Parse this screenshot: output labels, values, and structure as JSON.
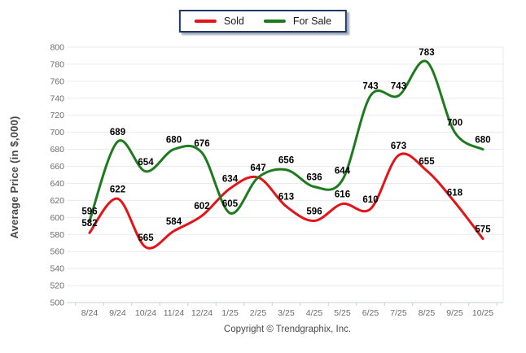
{
  "page": {
    "footer": "Copyright © Trendgraphix, Inc."
  },
  "legend": {
    "border_color": "#1f3864"
  },
  "chart_data": {
    "type": "line",
    "title": "",
    "xlabel": "",
    "ylabel": "Average Price (in $,000)",
    "ylim": [
      500,
      800
    ],
    "ytick_step": 20,
    "grid": "horizontal",
    "legend_position": "top-center",
    "smooth": true,
    "categories": [
      "8/24",
      "9/24",
      "10/24",
      "11/24",
      "12/24",
      "1/25",
      "2/25",
      "3/25",
      "4/25",
      "5/25",
      "6/25",
      "7/25",
      "8/25",
      "9/25",
      "10/25"
    ],
    "series": [
      {
        "name": "Sold",
        "color": "#e41317",
        "values": [
          582,
          622,
          565,
          584,
          602,
          634,
          647,
          613,
          596,
          616,
          610,
          673,
          655,
          618,
          575
        ],
        "labels": [
          "582",
          "622",
          "565",
          "584",
          "602",
          "634",
          "647",
          "613",
          "596",
          "616",
          "610",
          "673",
          "655",
          "618",
          "575"
        ]
      },
      {
        "name": "For Sale",
        "color": "#1d7a1d",
        "values": [
          596,
          689,
          654,
          680,
          676,
          605,
          647,
          656,
          636,
          644,
          743,
          743,
          783,
          700,
          680
        ],
        "labels": [
          "596",
          "689",
          "654",
          "680",
          "676",
          "605",
          "",
          "656",
          "636",
          "644",
          "743",
          "743",
          "783",
          "700",
          "680"
        ]
      }
    ]
  }
}
